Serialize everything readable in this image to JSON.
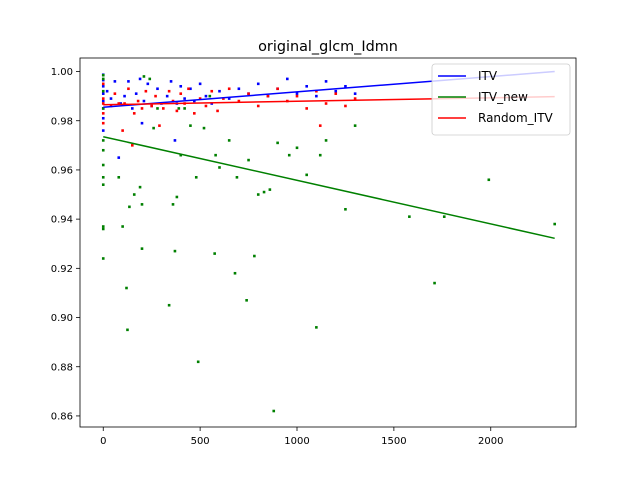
{
  "chart_data": {
    "type": "scatter",
    "title": "original_glcm_Idmn",
    "xlabel": "",
    "ylabel": "",
    "xlim": [
      -120,
      2440
    ],
    "ylim": [
      0.8555,
      1.0055
    ],
    "x_ticks": [
      0,
      500,
      1000,
      1500,
      2000
    ],
    "x_tick_labels": [
      "0",
      "500",
      "1000",
      "1500",
      "2000"
    ],
    "y_ticks": [
      0.86,
      0.88,
      0.9,
      0.92,
      0.94,
      0.96,
      0.98,
      1.0
    ],
    "y_tick_labels": [
      "0.86",
      "0.88",
      "0.90",
      "0.92",
      "0.94",
      "0.96",
      "0.98",
      "1.00"
    ],
    "grid": false,
    "legend_position": "top-right",
    "series": [
      {
        "name": "ITV",
        "color": "#0000ff",
        "fit_line": {
          "x": [
            0,
            2330
          ],
          "y": [
            0.9855,
            1.0
          ]
        },
        "points": [
          [
            0,
            0.9987
          ],
          [
            0,
            0.9965
          ],
          [
            0,
            0.994
          ],
          [
            0,
            0.991
          ],
          [
            0,
            0.988
          ],
          [
            0,
            0.985
          ],
          [
            0,
            0.981
          ],
          [
            0,
            0.976
          ],
          [
            20,
            0.992
          ],
          [
            40,
            0.989
          ],
          [
            60,
            0.996
          ],
          [
            80,
            0.965
          ],
          [
            90,
            0.987
          ],
          [
            110,
            0.99
          ],
          [
            130,
            0.996
          ],
          [
            150,
            0.985
          ],
          [
            170,
            0.991
          ],
          [
            190,
            0.997
          ],
          [
            200,
            0.979
          ],
          [
            210,
            0.988
          ],
          [
            230,
            0.995
          ],
          [
            250,
            0.986
          ],
          [
            280,
            0.993
          ],
          [
            300,
            0.987
          ],
          [
            330,
            0.99
          ],
          [
            350,
            0.996
          ],
          [
            370,
            0.972
          ],
          [
            380,
            0.987
          ],
          [
            400,
            0.994
          ],
          [
            420,
            0.989
          ],
          [
            450,
            0.993
          ],
          [
            470,
            0.988
          ],
          [
            500,
            0.995
          ],
          [
            530,
            0.99
          ],
          [
            560,
            0.987
          ],
          [
            600,
            0.992
          ],
          [
            650,
            0.989
          ],
          [
            700,
            0.993
          ],
          [
            750,
            0.991
          ],
          [
            800,
            0.995
          ],
          [
            850,
            0.99
          ],
          [
            900,
            0.993
          ],
          [
            950,
            0.997
          ],
          [
            1000,
            0.991
          ],
          [
            1050,
            0.994
          ],
          [
            1100,
            0.99
          ],
          [
            1150,
            0.996
          ],
          [
            1200,
            0.992
          ],
          [
            1250,
            0.994
          ],
          [
            1300,
            0.991
          ]
        ]
      },
      {
        "name": "ITV_new",
        "color": "#008000",
        "fit_line": {
          "x": [
            0,
            2330
          ],
          "y": [
            0.9735,
            0.9322
          ]
        },
        "points": [
          [
            0,
            0.9985
          ],
          [
            0,
            0.997
          ],
          [
            0,
            0.992
          ],
          [
            0,
            0.985
          ],
          [
            0,
            0.972
          ],
          [
            0,
            0.968
          ],
          [
            0,
            0.962
          ],
          [
            0,
            0.957
          ],
          [
            0,
            0.954
          ],
          [
            0,
            0.937
          ],
          [
            0,
            0.936
          ],
          [
            0,
            0.924
          ],
          [
            80,
            0.957
          ],
          [
            100,
            0.937
          ],
          [
            120,
            0.912
          ],
          [
            125,
            0.895
          ],
          [
            135,
            0.945
          ],
          [
            160,
            0.95
          ],
          [
            190,
            0.953
          ],
          [
            200,
            0.928
          ],
          [
            200,
            0.946
          ],
          [
            210,
            0.998
          ],
          [
            240,
            0.997
          ],
          [
            260,
            0.977
          ],
          [
            280,
            0.985
          ],
          [
            340,
            0.905
          ],
          [
            360,
            0.946
          ],
          [
            370,
            0.927
          ],
          [
            380,
            0.949
          ],
          [
            390,
            0.985
          ],
          [
            400,
            0.966
          ],
          [
            420,
            0.985
          ],
          [
            450,
            0.978
          ],
          [
            480,
            0.957
          ],
          [
            490,
            0.882
          ],
          [
            520,
            0.977
          ],
          [
            550,
            0.99
          ],
          [
            575,
            0.926
          ],
          [
            580,
            0.966
          ],
          [
            600,
            0.961
          ],
          [
            650,
            0.972
          ],
          [
            680,
            0.918
          ],
          [
            690,
            0.957
          ],
          [
            740,
            0.907
          ],
          [
            750,
            0.964
          ],
          [
            780,
            0.925
          ],
          [
            800,
            0.95
          ],
          [
            830,
            0.951
          ],
          [
            860,
            0.952
          ],
          [
            880,
            0.862
          ],
          [
            900,
            0.971
          ],
          [
            960,
            0.966
          ],
          [
            1000,
            0.969
          ],
          [
            1050,
            0.958
          ],
          [
            1100,
            0.896
          ],
          [
            1120,
            0.966
          ],
          [
            1150,
            0.972
          ],
          [
            1250,
            0.944
          ],
          [
            1300,
            0.978
          ],
          [
            1580,
            0.941
          ],
          [
            1710,
            0.914
          ],
          [
            1760,
            0.941
          ],
          [
            1990,
            0.956
          ],
          [
            2330,
            0.938
          ]
        ]
      },
      {
        "name": "Random_ITV",
        "color": "#ff0000",
        "fit_line": {
          "x": [
            0,
            2330
          ],
          "y": [
            0.9865,
            0.9898
          ]
        },
        "points": [
          [
            0,
            0.995
          ],
          [
            0,
            0.989
          ],
          [
            0,
            0.987
          ],
          [
            0,
            0.983
          ],
          [
            0,
            0.979
          ],
          [
            40,
            0.986
          ],
          [
            60,
            0.991
          ],
          [
            80,
            0.987
          ],
          [
            100,
            0.976
          ],
          [
            110,
            0.987
          ],
          [
            130,
            0.993
          ],
          [
            150,
            0.97
          ],
          [
            160,
            0.983
          ],
          [
            180,
            0.988
          ],
          [
            200,
            0.985
          ],
          [
            220,
            0.992
          ],
          [
            250,
            0.986
          ],
          [
            270,
            0.99
          ],
          [
            290,
            0.978
          ],
          [
            310,
            0.985
          ],
          [
            340,
            0.992
          ],
          [
            360,
            0.988
          ],
          [
            380,
            0.984
          ],
          [
            400,
            0.991
          ],
          [
            420,
            0.987
          ],
          [
            440,
            0.993
          ],
          [
            470,
            0.983
          ],
          [
            500,
            0.989
          ],
          [
            530,
            0.986
          ],
          [
            560,
            0.992
          ],
          [
            590,
            0.984
          ],
          [
            620,
            0.989
          ],
          [
            650,
            0.993
          ],
          [
            700,
            0.988
          ],
          [
            750,
            0.991
          ],
          [
            800,
            0.986
          ],
          [
            850,
            0.99
          ],
          [
            900,
            0.993
          ],
          [
            950,
            0.988
          ],
          [
            1000,
            0.99
          ],
          [
            1050,
            0.985
          ],
          [
            1100,
            0.992
          ],
          [
            1120,
            0.978
          ],
          [
            1150,
            0.987
          ],
          [
            1200,
            0.991
          ],
          [
            1250,
            0.986
          ],
          [
            1300,
            0.989
          ]
        ]
      }
    ]
  }
}
